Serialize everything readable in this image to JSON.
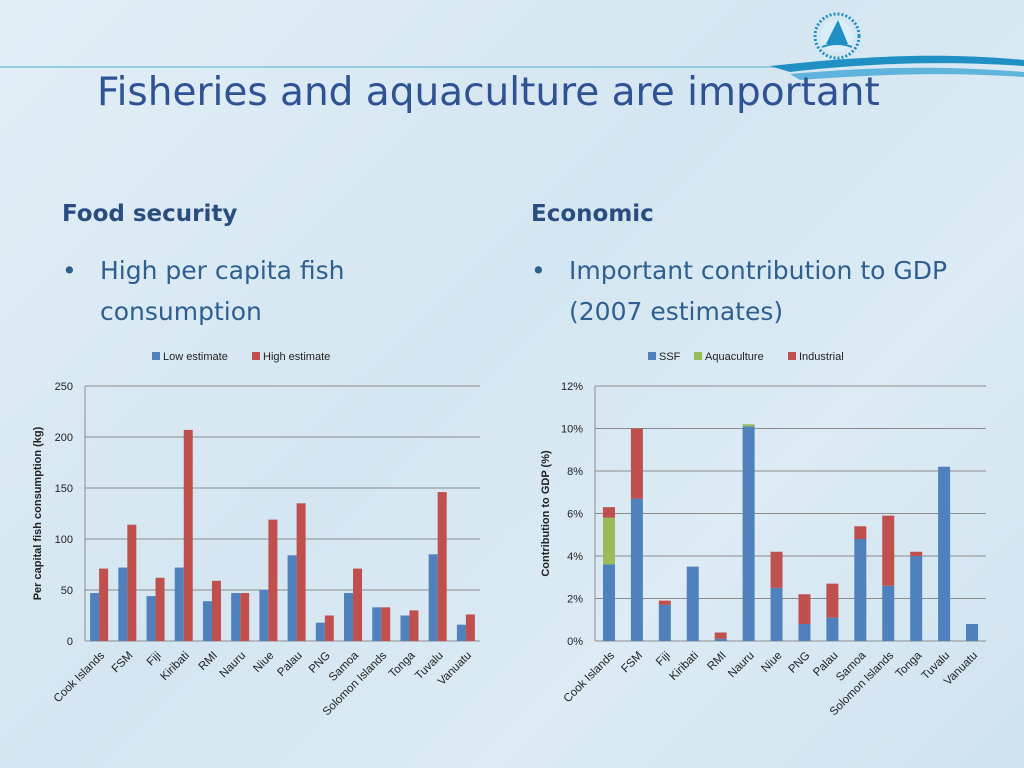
{
  "slide": {
    "title": "Fisheries and aquaculture are important",
    "left_column": {
      "heading": "Food security",
      "bullet": "High per capita fish consumption"
    },
    "right_column": {
      "heading": "Economic",
      "bullet": "Important contribution to GDP (2007 estimates)"
    },
    "colors": {
      "title": "#2e5294",
      "logo": "#1f8fc4"
    }
  },
  "chart_data": [
    {
      "type": "bar",
      "categories": [
        "Cook Islands",
        "FSM",
        "Fiji",
        "Kiribati",
        "RMI",
        "Nauru",
        "Niue",
        "Palau",
        "PNG",
        "Samoa",
        "Solomon Islands",
        "Tonga",
        "Tuvalu",
        "Vanuatu"
      ],
      "series": [
        {
          "name": "Low estimate",
          "color": "#4f81bd",
          "values": [
            47,
            72,
            44,
            72,
            39,
            47,
            50,
            84,
            18,
            47,
            33,
            25,
            85,
            16
          ]
        },
        {
          "name": "High estimate",
          "color": "#c0504d",
          "values": [
            71,
            114,
            62,
            207,
            59,
            47,
            119,
            135,
            25,
            71,
            33,
            30,
            146,
            26
          ]
        }
      ],
      "ylabel": "Per capital fish consumption (kg)",
      "ylim": [
        0,
        250
      ],
      "yticks": [
        "0",
        "50",
        "100",
        "150",
        "200",
        "250"
      ],
      "grid": true,
      "legend": "top"
    },
    {
      "type": "bar",
      "stacked": true,
      "categories": [
        "Cook Islands",
        "FSM",
        "Fiji",
        "Kiribati",
        "RMI",
        "Nauru",
        "Niue",
        "PNG",
        "Palau",
        "Samoa",
        "Solomon Islands",
        "Tonga",
        "Tuvalu",
        "Vanuatu"
      ],
      "series": [
        {
          "name": "SSF",
          "color": "#4f81bd",
          "values": [
            3.6,
            6.7,
            1.7,
            3.5,
            0.1,
            10.1,
            2.5,
            0.8,
            1.1,
            4.8,
            2.6,
            4.0,
            8.2,
            0.8
          ]
        },
        {
          "name": "Aquaculture",
          "color": "#9bbb59",
          "values": [
            2.2,
            0,
            0,
            0,
            0,
            0.1,
            0,
            0,
            0,
            0,
            0,
            0,
            0,
            0
          ]
        },
        {
          "name": "Industrial",
          "color": "#c0504d",
          "values": [
            0.5,
            3.3,
            0.2,
            0,
            0.3,
            0,
            1.7,
            1.4,
            1.6,
            0.6,
            3.3,
            0.2,
            0,
            0
          ]
        }
      ],
      "ylabel": "Contribution to GDP (%)",
      "ylim": [
        0,
        12
      ],
      "yticks": [
        "0%",
        "2%",
        "4%",
        "6%",
        "8%",
        "10%",
        "12%"
      ],
      "grid": true,
      "legend": "top"
    }
  ]
}
